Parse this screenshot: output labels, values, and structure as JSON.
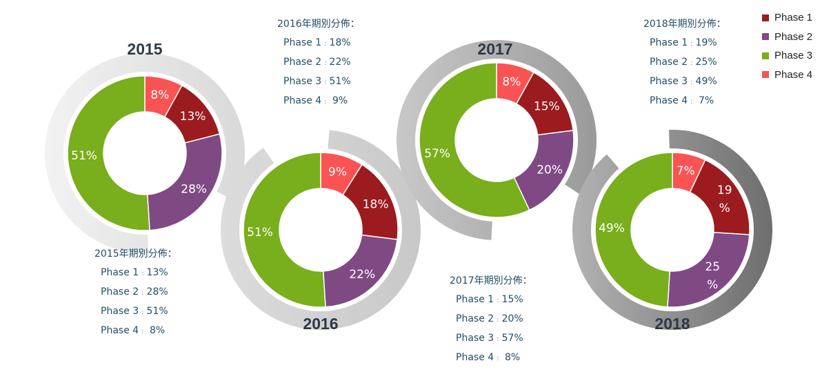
{
  "legend": [
    {
      "label": "Phase 1",
      "color": "#9b1b1e"
    },
    {
      "label": "Phase 2",
      "color": "#7f4a84"
    },
    {
      "label": "Phase 3",
      "color": "#79ae1c"
    },
    {
      "label": "Phase 4",
      "color": "#f95353"
    }
  ],
  "chart_data": [
    {
      "type": "pie",
      "year": "2015",
      "categories": [
        "Phase 1",
        "Phase 2",
        "Phase 3",
        "Phase 4"
      ],
      "values": [
        13,
        28,
        51,
        8
      ],
      "labels": [
        "13%",
        "28%",
        "51%",
        "8%"
      ]
    },
    {
      "type": "pie",
      "year": "2016",
      "categories": [
        "Phase 1",
        "Phase 2",
        "Phase 3",
        "Phase 4"
      ],
      "values": [
        18,
        22,
        51,
        9
      ],
      "labels": [
        "18%",
        "22%",
        "51%",
        "9%"
      ]
    },
    {
      "type": "pie",
      "year": "2017",
      "categories": [
        "Phase 1",
        "Phase 2",
        "Phase 3",
        "Phase 4"
      ],
      "values": [
        15,
        20,
        57,
        8
      ],
      "labels": [
        "15%",
        "20%",
        "57%",
        "8%"
      ]
    },
    {
      "type": "pie",
      "year": "2018",
      "categories": [
        "Phase 1",
        "Phase 2",
        "Phase 3",
        "Phase 4"
      ],
      "values": [
        19,
        25,
        49,
        7
      ],
      "labels": [
        "19\n%",
        "25\n%",
        "49%",
        "7%"
      ]
    }
  ],
  "notes": [
    {
      "title": "2015年期別分佈：",
      "rows": [
        {
          "label": "Phase 1",
          "value": "13%"
        },
        {
          "label": "Phase 2",
          "value": "28%"
        },
        {
          "label": "Phase 3",
          "value": "51%"
        },
        {
          "label": "Phase 4",
          "value": " 8%"
        }
      ]
    },
    {
      "title": "2016年期別分佈：",
      "rows": [
        {
          "label": "Phase 1",
          "value": "18%"
        },
        {
          "label": "Phase 2",
          "value": "22%"
        },
        {
          "label": "Phase 3",
          "value": "51%"
        },
        {
          "label": "Phase 4",
          "value": " 9%"
        }
      ]
    },
    {
      "title": "2017年期別分佈：",
      "rows": [
        {
          "label": "Phase 1",
          "value": "15%"
        },
        {
          "label": "Phase 2",
          "value": "20%"
        },
        {
          "label": "Phase 3",
          "value": "57%"
        },
        {
          "label": "Phase 4",
          "value": " 8%"
        }
      ]
    },
    {
      "title": "2018年期別分佈：",
      "rows": [
        {
          "label": "Phase 1",
          "value": "19%"
        },
        {
          "label": "Phase 2",
          "value": "25%"
        },
        {
          "label": "Phase 3",
          "value": "49%"
        },
        {
          "label": "Phase 4",
          "value": " 7%"
        }
      ]
    }
  ]
}
